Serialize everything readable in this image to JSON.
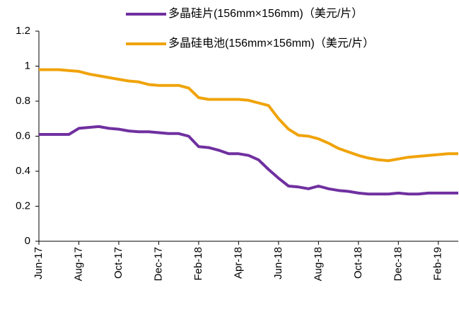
{
  "chart_data": {
    "type": "line",
    "categories": [
      "Jun-17",
      null,
      null,
      null,
      "Aug-17",
      null,
      null,
      null,
      "Oct-17",
      null,
      null,
      null,
      "Dec-17",
      null,
      null,
      null,
      "Feb-18",
      null,
      null,
      null,
      "Apr-18",
      null,
      null,
      null,
      "Jun-18",
      null,
      null,
      null,
      "Aug-18",
      null,
      null,
      null,
      "Oct-18",
      null,
      null,
      null,
      "Dec-18",
      null,
      null,
      null,
      "Feb-19",
      null,
      null
    ],
    "series": [
      {
        "name": "多晶硅片(156mm×156mm)（美元/片）",
        "color": "#7030a0",
        "values": [
          0.61,
          0.61,
          0.61,
          0.61,
          0.645,
          0.65,
          0.655,
          0.645,
          0.64,
          0.63,
          0.625,
          0.625,
          0.62,
          0.615,
          0.615,
          0.6,
          0.54,
          0.535,
          0.52,
          0.5,
          0.5,
          0.49,
          0.465,
          0.41,
          0.36,
          0.315,
          0.31,
          0.3,
          0.315,
          0.3,
          0.29,
          0.285,
          0.275,
          0.27,
          0.27,
          0.27,
          0.275,
          0.27,
          0.27,
          0.275,
          0.275,
          0.275,
          0.275
        ]
      },
      {
        "name": "多晶硅电池(156mm×156mm)（美元/片）",
        "color": "#f0a30a",
        "values": [
          0.98,
          0.98,
          0.98,
          0.975,
          0.97,
          0.955,
          0.945,
          0.935,
          0.925,
          0.915,
          0.91,
          0.895,
          0.89,
          0.89,
          0.89,
          0.875,
          0.82,
          0.81,
          0.81,
          0.81,
          0.81,
          0.805,
          0.79,
          0.775,
          0.7,
          0.64,
          0.605,
          0.6,
          0.585,
          0.56,
          0.53,
          0.51,
          0.49,
          0.475,
          0.465,
          0.46,
          0.47,
          0.48,
          0.485,
          0.49,
          0.495,
          0.5,
          0.5
        ]
      }
    ],
    "ylim": [
      0,
      1.2
    ],
    "yticks": [
      0,
      0.2,
      0.4,
      0.6,
      0.8,
      1,
      1.2
    ],
    "legend": "top"
  }
}
